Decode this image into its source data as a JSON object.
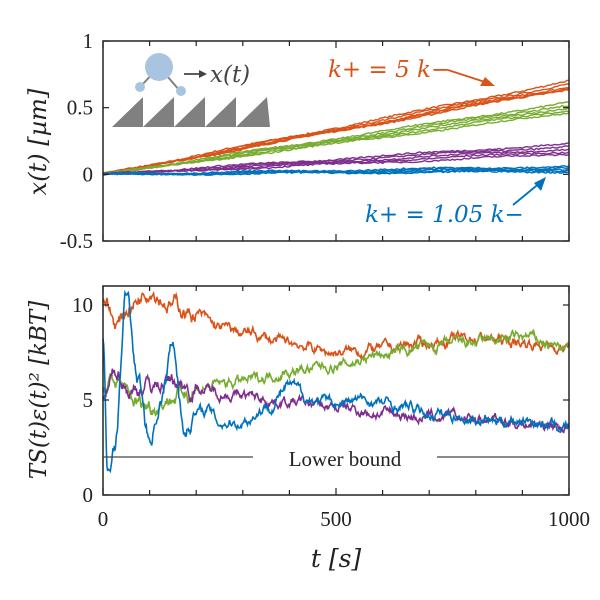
{
  "colors": {
    "orange": "#d95319",
    "green": "#77ac30",
    "purple": "#7e2f8e",
    "blue": "#0072bd",
    "axis": "#222222",
    "gray": "#808080",
    "bead": "#a9c4e0"
  },
  "chart_data": [
    {
      "type": "line",
      "id": "top",
      "ylabel": "x(t) [µm]",
      "xlim": [
        0,
        1000
      ],
      "ylim": [
        -0.5,
        1
      ],
      "yticks": [
        "-0.5",
        "0",
        "0.5",
        "1"
      ],
      "grid": false,
      "inset_label": "x(t)",
      "annotations": [
        {
          "text": "k+ = 5 k−",
          "color": "orange"
        },
        {
          "text": "k+ = 1.05 k−",
          "color": "blue"
        }
      ],
      "series": [
        {
          "color": "orange",
          "traces_end": [
            0.7,
            0.68,
            0.66,
            0.65,
            0.64
          ]
        },
        {
          "color": "green",
          "traces_end": [
            0.54,
            0.52,
            0.5,
            0.48,
            0.46
          ]
        },
        {
          "color": "purple",
          "traces_end": [
            0.23,
            0.21,
            0.19,
            0.17,
            0.15
          ]
        },
        {
          "color": "blue",
          "traces_end": [
            0.06,
            0.05,
            0.04,
            0.03,
            0.02
          ]
        }
      ]
    },
    {
      "type": "line",
      "id": "bottom",
      "xlabel": "t [s]",
      "ylabel": "TS(t)ε(t)² [kBT]",
      "xlim": [
        0,
        1000
      ],
      "ylim": [
        0,
        11
      ],
      "xticks": [
        "0",
        "500",
        "1000"
      ],
      "yticks": [
        "0",
        "5",
        "10"
      ],
      "reference_line": {
        "y": 2,
        "label": "Lower bound"
      },
      "series": [
        {
          "color": "orange",
          "x": [
            0,
            30,
            60,
            100,
            150,
            200,
            250,
            300,
            400,
            500,
            600,
            700,
            800,
            900,
            1000
          ],
          "y": [
            10.5,
            9,
            10,
            11,
            10,
            9.5,
            8.8,
            8.5,
            8,
            7.5,
            7.7,
            8,
            8.3,
            8,
            7.8
          ]
        },
        {
          "color": "green",
          "x": [
            0,
            30,
            60,
            100,
            150,
            200,
            250,
            300,
            400,
            500,
            600,
            700,
            800,
            900,
            1000
          ],
          "y": [
            5.5,
            6,
            5,
            4.7,
            5.2,
            5.6,
            5.8,
            6,
            6.5,
            6.8,
            7.4,
            7.8,
            8,
            8.3,
            7.7
          ]
        },
        {
          "color": "purple",
          "x": [
            0,
            30,
            60,
            100,
            150,
            200,
            250,
            300,
            400,
            500,
            600,
            700,
            800,
            900,
            1000
          ],
          "y": [
            5,
            6.5,
            5.5,
            5.8,
            6,
            5.6,
            5.4,
            5.2,
            4.9,
            4.6,
            4.3,
            4.1,
            4,
            3.8,
            3.6
          ]
        },
        {
          "color": "blue",
          "x": [
            0,
            10,
            25,
            50,
            75,
            100,
            125,
            150,
            175,
            200,
            225,
            250,
            300,
            350,
            400,
            450,
            500,
            550,
            600,
            650,
            700,
            750,
            800,
            850,
            900,
            950,
            1000
          ],
          "y": [
            8,
            1,
            2.5,
            10.5,
            6,
            3,
            5,
            8,
            3.5,
            4.3,
            4.5,
            3.8,
            3.9,
            4.6,
            5.7,
            5,
            4.8,
            5,
            4.8,
            4.6,
            4.3,
            4.2,
            4,
            3.9,
            4,
            3.7,
            3.6
          ]
        }
      ]
    }
  ]
}
